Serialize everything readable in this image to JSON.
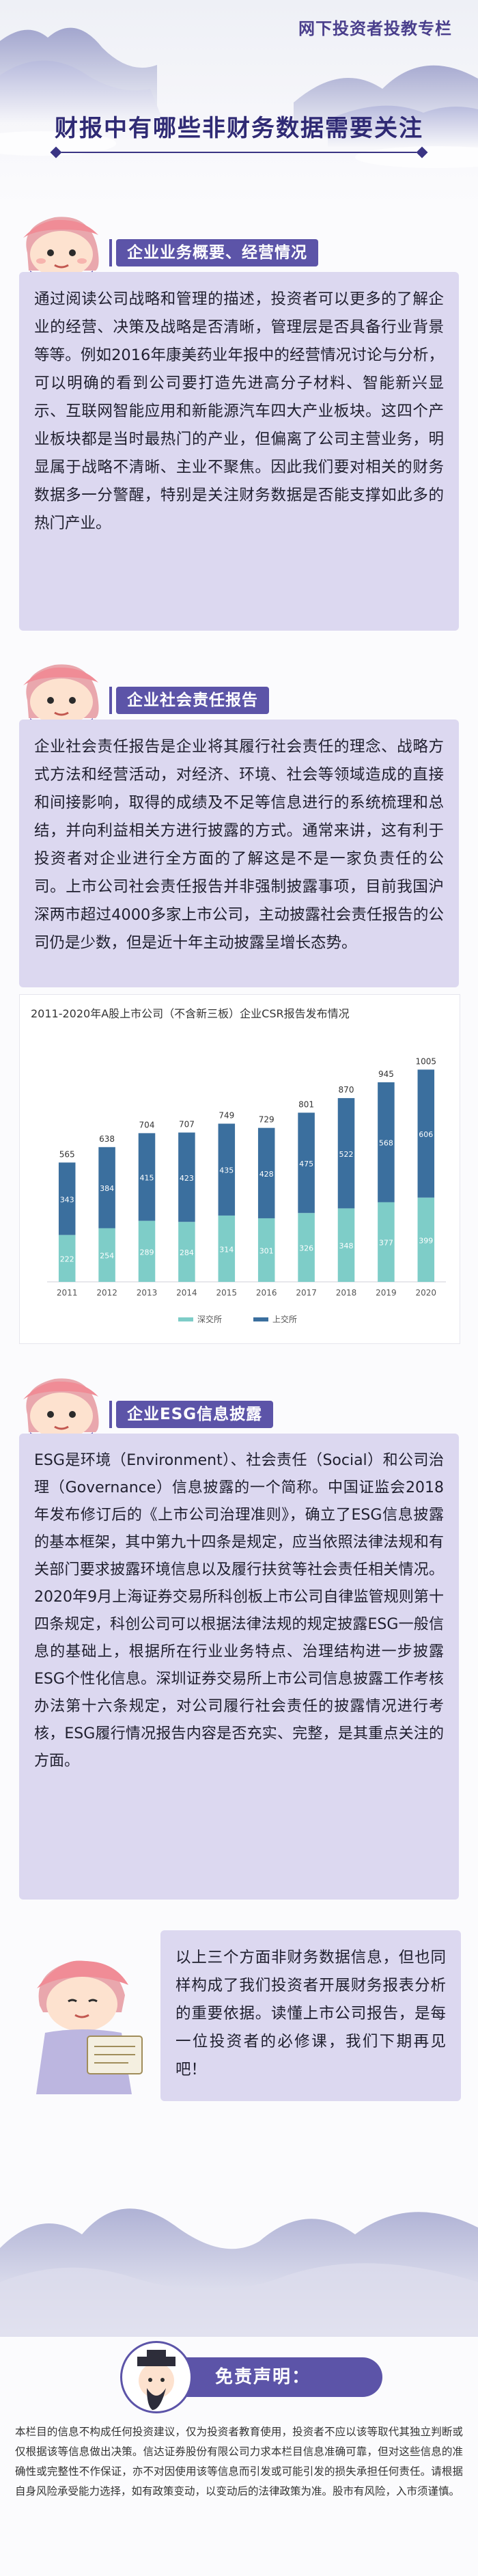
{
  "header": {
    "column_tag": "网下投资者投教专栏",
    "title": "财报中有哪些非财务数据需要关注"
  },
  "sections": [
    {
      "heading": "企业业务概要、经营情况",
      "body": "通过阅读公司战略和管理的描述，投资者可以更多的了解企业的经营、决策及战略是否清晰，管理层是否具备行业背景等等。例如2016年康美药业年报中的经营情况讨论与分析，可以明确的看到公司要打造先进高分子材料、智能新兴显示、互联网智能应用和新能源汽车四大产业板块。这四个产业板块都是当时最热门的产业，但偏离了公司主营业务，明显属于战略不清晰、主业不聚焦。因此我们要对相关的财务数据多一分警醒，特别是关注财务数据是否能支撑如此多的热门产业。"
    },
    {
      "heading": "企业社会责任报告",
      "body": "企业社会责任报告是企业将其履行社会责任的理念、战略方式方法和经营活动，对经济、环境、社会等领域造成的直接和间接影响，取得的成绩及不足等信息进行的系统梳理和总结，并向利益相关方进行披露的方式。通常来讲，这有利于投资者对企业进行全方面的了解这是不是一家负责任的公司。上市公司社会责任报告并非强制披露事项，目前我国沪深两市超过4000多家上市公司，主动披露社会责任报告的公司仍是少数，但是近十年主动披露呈增长态势。"
    },
    {
      "heading": "企业ESG信息披露",
      "body": "ESG是环境（Environment）、社会责任（Social）和公司治理（Governance）信息披露的一个简称。中国证监会2018年发布修订后的《上市公司治理准则》，确立了ESG信息披露的基本框架，其中第九十四条是规定，应当依照法律法规和有关部门要求披露环境信息以及履行扶贫等社会责任相关情况。2020年9月上海证券交易所科创板上市公司自律监管规则第十四条规定，科创公司可以根据法律法规的规定披露ESG一般信息的基础上，根据所在行业业务特点、治理结构进一步披露ESG个性化信息。深圳证券交易所上市公司信息披露工作考核办法第十六条规定，对公司履行社会责任的披露情况进行考核，ESG履行情况报告内容是否充实、完整，是其重点关注的方面。"
    }
  ],
  "chart_data": {
    "type": "bar",
    "title": "2011-2020年A股上市公司（不含新三板）企业CSR报告发布情况",
    "categories": [
      "2011",
      "2012",
      "2013",
      "2014",
      "2015",
      "2016",
      "2017",
      "2018",
      "2019",
      "2020"
    ],
    "totals": [
      565,
      638,
      704,
      707,
      749,
      729,
      801,
      870,
      945,
      1005
    ],
    "series": [
      {
        "name": "深交所",
        "color": "#7ecdc8",
        "values": [
          222,
          254,
          289,
          284,
          314,
          301,
          326,
          348,
          377,
          399
        ]
      },
      {
        "name": "上交所",
        "color": "#3b6f9e",
        "values": [
          343,
          384,
          415,
          423,
          435,
          428,
          475,
          522,
          568,
          606
        ]
      }
    ],
    "ylim": [
      0,
      1100
    ],
    "stacked": true,
    "legend": "bottom-center"
  },
  "summary": {
    "text": "以上三个方面非财务数据信息，但也同样构成了我们投资者开展财务报表分析的重要依据。读懂上市公司报告，是每一位投资者的必修课，我们下期再见吧！"
  },
  "disclaimer": {
    "title": "免责声明：",
    "text": "本栏目的信息不构成任何投资建议，仅为投资者教育使用，投资者不应以该等取代其独立判断或仅根据该等信息做出决策。信达证券股份有限公司力求本栏目信息准确可靠，但对这些信息的准确性或完整性不作保证，亦不对因使用该等信息而引发或可能引发的损失承担任何责任。请根据自身风险承受能力选择，如有政策变动，以变动后的法律政策为准。股市有风险，入市须谨慎。"
  },
  "colors": {
    "accent": "#5c54a8",
    "card_bg": "#dcd8f0",
    "title": "#2f2a74"
  }
}
